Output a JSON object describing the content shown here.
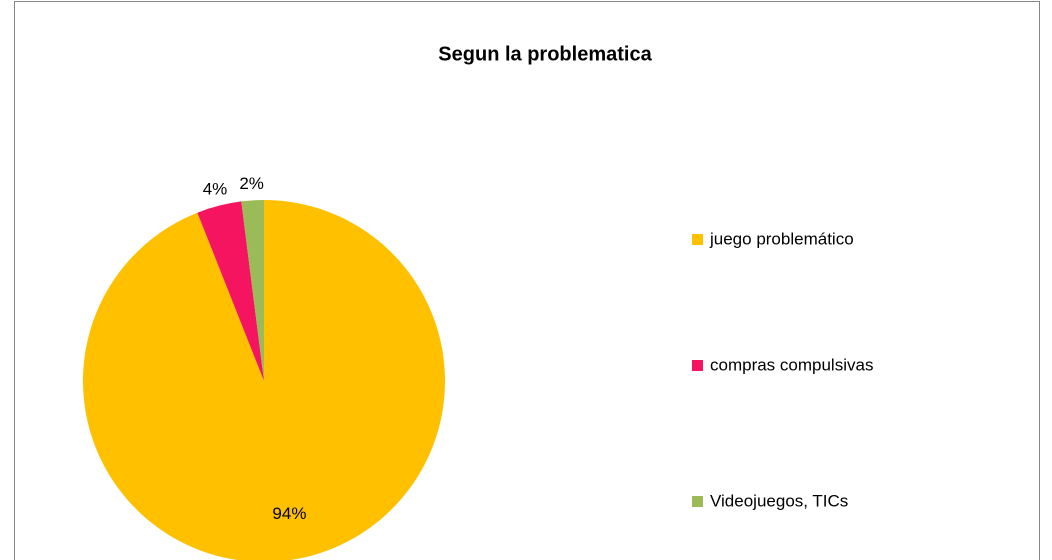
{
  "chart_data": {
    "type": "pie",
    "title": "Segun la problematica",
    "categories": [
      "juego problemático",
      "compras compulsivas",
      "Videojuegos, TICs"
    ],
    "values": [
      94,
      4,
      2
    ],
    "value_labels": [
      "94%",
      "4%",
      "2%"
    ],
    "colors": [
      "#FFC000",
      "#F5145F",
      "#9BBB59"
    ],
    "legend": "right"
  }
}
